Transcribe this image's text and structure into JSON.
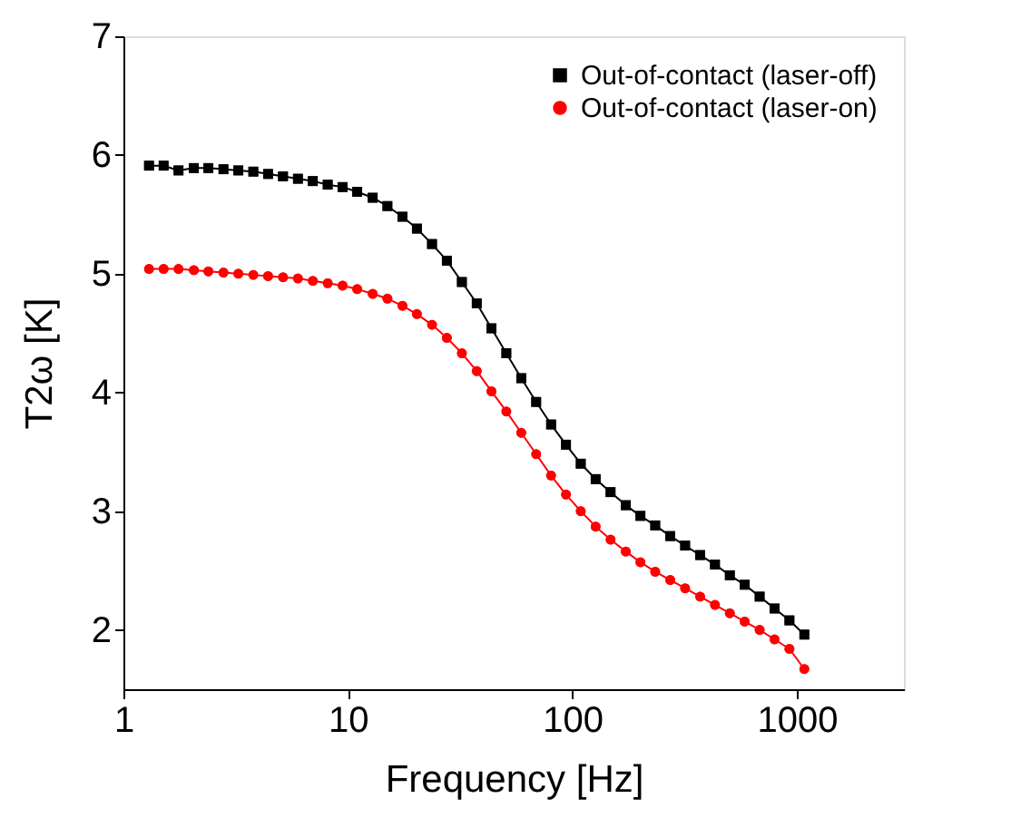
{
  "chart_data": {
    "type": "line",
    "xlabel": "Frequency [Hz]",
    "ylabel": "T2ω [K]",
    "x": [
      1.3,
      1.51,
      1.76,
      2.06,
      2.39,
      2.79,
      3.25,
      3.79,
      4.41,
      5.14,
      5.99,
      6.98,
      8.13,
      9.47,
      11.0,
      12.9,
      15.0,
      17.5,
      20.3,
      23.7,
      27.6,
      32.2,
      37.5,
      43.6,
      50.8,
      59.2,
      69.0,
      80.4,
      93.7,
      109,
      127,
      148,
      173,
      201,
      234,
      273,
      318,
      371,
      432,
      503,
      586,
      683,
      796,
      927,
      1080
    ],
    "series": [
      {
        "name": "Out-of-contact (laser-off)",
        "color": "#000000",
        "marker": "square",
        "values": [
          5.91,
          5.91,
          5.87,
          5.89,
          5.89,
          5.88,
          5.87,
          5.86,
          5.84,
          5.82,
          5.8,
          5.78,
          5.75,
          5.73,
          5.69,
          5.64,
          5.57,
          5.48,
          5.38,
          5.25,
          5.11,
          4.93,
          4.75,
          4.54,
          4.33,
          4.12,
          3.92,
          3.73,
          3.56,
          3.4,
          3.27,
          3.16,
          3.05,
          2.96,
          2.88,
          2.79,
          2.71,
          2.63,
          2.55,
          2.46,
          2.38,
          2.28,
          2.18,
          2.08,
          1.96
        ]
      },
      {
        "name": "Out-of-contact (laser-on)",
        "color": "#ff0000",
        "marker": "circle",
        "values": [
          5.04,
          5.04,
          5.04,
          5.03,
          5.02,
          5.01,
          5.0,
          4.99,
          4.98,
          4.97,
          4.96,
          4.94,
          4.92,
          4.9,
          4.87,
          4.83,
          4.79,
          4.73,
          4.66,
          4.57,
          4.46,
          4.33,
          4.18,
          4.01,
          3.84,
          3.66,
          3.48,
          3.3,
          3.14,
          3.0,
          2.87,
          2.76,
          2.66,
          2.57,
          2.49,
          2.42,
          2.35,
          2.28,
          2.21,
          2.14,
          2.07,
          2.0,
          1.92,
          1.84,
          1.67
        ]
      }
    ],
    "log": "x",
    "xlim": [
      1,
      3000
    ],
    "xticks": [
      1,
      10,
      100,
      1000
    ],
    "ylim": [
      1.5,
      7
    ],
    "yticks": [
      2,
      3,
      4,
      5,
      6,
      7
    ],
    "grid": false,
    "legend": "top right",
    "line_style": "solid"
  }
}
